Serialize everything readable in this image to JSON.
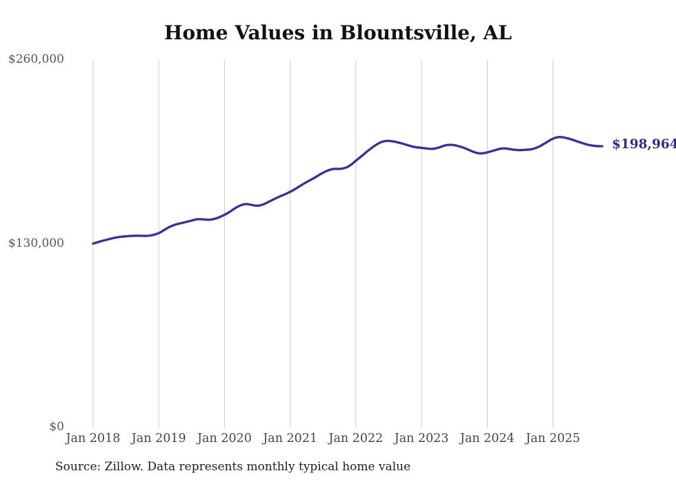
{
  "page": {
    "title": "Home Values in Blountsville, AL",
    "source": "Source: Zillow. Data represents monthly typical home value"
  },
  "chart_data": {
    "type": "line",
    "title": "Home Values in Blountsville, AL",
    "xlabel": "",
    "ylabel": "",
    "ylim": [
      0,
      260000
    ],
    "grid": "vertical-year-gridlines",
    "legend": "none",
    "end_label": "$198,964",
    "end_value": 198964,
    "y_ticks": [
      {
        "label": "$260,000",
        "value": 260000
      },
      {
        "label": "$130,000",
        "value": 130000
      },
      {
        "label": "$0",
        "value": 0
      }
    ],
    "x_tick_labels": [
      "Jan 2018",
      "Jan 2019",
      "Jan 2020",
      "Jan 2021",
      "Jan 2022",
      "Jan 2023",
      "Jan 2024",
      "Jan 2025"
    ],
    "series": [
      {
        "name": "Typical home value",
        "months": [
          "Jan 2018",
          "Feb 2018",
          "Mar 2018",
          "Apr 2018",
          "May 2018",
          "Jun 2018",
          "Jul 2018",
          "Aug 2018",
          "Sep 2018",
          "Oct 2018",
          "Nov 2018",
          "Dec 2018",
          "Jan 2019",
          "Feb 2019",
          "Mar 2019",
          "Apr 2019",
          "May 2019",
          "Jun 2019",
          "Jul 2019",
          "Aug 2019",
          "Sep 2019",
          "Oct 2019",
          "Nov 2019",
          "Dec 2019",
          "Jan 2020",
          "Feb 2020",
          "Mar 2020",
          "Apr 2020",
          "May 2020",
          "Jun 2020",
          "Jul 2020",
          "Aug 2020",
          "Sep 2020",
          "Oct 2020",
          "Nov 2020",
          "Dec 2020",
          "Jan 2021",
          "Feb 2021",
          "Mar 2021",
          "Apr 2021",
          "May 2021",
          "Jun 2021",
          "Jul 2021",
          "Aug 2021",
          "Sep 2021",
          "Oct 2021",
          "Nov 2021",
          "Dec 2021",
          "Jan 2022",
          "Feb 2022",
          "Mar 2022",
          "Apr 2022",
          "May 2022",
          "Jun 2022",
          "Jul 2022",
          "Aug 2022",
          "Sep 2022",
          "Oct 2022",
          "Nov 2022",
          "Dec 2022",
          "Jan 2023",
          "Feb 2023",
          "Mar 2023",
          "Apr 2023",
          "May 2023",
          "Jun 2023",
          "Jul 2023",
          "Aug 2023",
          "Sep 2023",
          "Oct 2023",
          "Nov 2023",
          "Dec 2023",
          "Jan 2024",
          "Feb 2024",
          "Mar 2024",
          "Apr 2024",
          "May 2024",
          "Jun 2024",
          "Jul 2024",
          "Aug 2024",
          "Sep 2024",
          "Oct 2024",
          "Nov 2024",
          "Dec 2024",
          "Jan 2025",
          "Feb 2025",
          "Mar 2025",
          "Apr 2025",
          "May 2025",
          "Jun 2025",
          "Jul 2025",
          "Aug 2025",
          "Sep 2025",
          "Oct 2025"
        ],
        "values": [
          130100,
          131300,
          132400,
          133400,
          134300,
          134900,
          135300,
          135600,
          135700,
          135600,
          135500,
          136200,
          137400,
          139800,
          142100,
          143600,
          144500,
          145400,
          146400,
          147500,
          147300,
          146900,
          147300,
          148700,
          150400,
          152600,
          155400,
          157400,
          158300,
          157400,
          156700,
          157600,
          159500,
          161500,
          163300,
          164900,
          166700,
          168900,
          171400,
          173700,
          175700,
          178000,
          180300,
          182100,
          183100,
          182900,
          183400,
          185400,
          188800,
          191800,
          195200,
          198200,
          200800,
          202600,
          202900,
          202300,
          201400,
          200300,
          199100,
          198200,
          197900,
          197300,
          197000,
          197800,
          199300,
          200100,
          199800,
          198800,
          197500,
          195800,
          194200,
          193800,
          194600,
          195700,
          196900,
          197600,
          197100,
          196400,
          196200,
          196500,
          196700,
          197800,
          199800,
          202200,
          204500,
          205600,
          205300,
          204300,
          203000,
          201700,
          200400,
          199500,
          199100,
          198964
        ]
      }
    ],
    "colors": {
      "line": "#37339b",
      "end_label": "#2e2b8f",
      "gridline": "#cbcbcb",
      "title": "#111111",
      "x_tick_text": "#454545",
      "y_tick_text": "#555555",
      "source_text": "#1e1e1e",
      "background": "#ffffff"
    }
  }
}
